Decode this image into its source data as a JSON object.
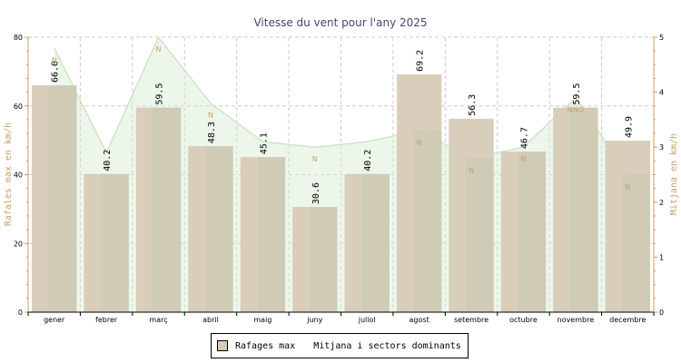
{
  "chart_data": {
    "type": "bar",
    "title": "Vitesse du vent pour l'any 2025",
    "categories": [
      "gener",
      "febrer",
      "març",
      "abril",
      "maig",
      "juny",
      "juliol",
      "agost",
      "setembre",
      "octubre",
      "novembre",
      "decembre"
    ],
    "ylabel_left": "Rafales max en km/h",
    "ylabel_right": "Mitjana en km/h",
    "ylim_left": [
      0,
      80
    ],
    "ylim_right": [
      0,
      5
    ],
    "yticks_left": [
      "0",
      "20",
      "40",
      "60",
      "80"
    ],
    "yticks_right": [
      "0",
      "1",
      "2",
      "3",
      "4",
      "5"
    ],
    "grid": true,
    "series": [
      {
        "name": "Rafages max",
        "kind": "bar",
        "axis": "left",
        "color": "#d7cbb7",
        "values": [
          66.0,
          40.2,
          59.5,
          48.3,
          45.1,
          30.6,
          40.2,
          69.2,
          56.3,
          46.7,
          59.5,
          49.9
        ],
        "labels": [
          "66.0",
          "40.2",
          "59.5",
          "48.3",
          "45.1",
          "30.6",
          "40.2",
          "69.2",
          "56.3",
          "46.7",
          "59.5",
          "49.9"
        ]
      },
      {
        "name": "Mitjana i sectors dominants",
        "kind": "area",
        "axis": "right",
        "color": "#d6ecd2",
        "values": [
          4.8,
          2.9,
          5.0,
          3.8,
          3.1,
          3.0,
          3.1,
          3.3,
          2.8,
          3.0,
          3.9,
          2.5
        ],
        "sectors": [
          "N",
          "",
          "N",
          "N",
          "",
          "N",
          "",
          "N",
          "N",
          "N",
          "NNO",
          "N"
        ]
      }
    ]
  },
  "legend": {
    "items": [
      "Rafages max",
      "Mitjana i sectors dominants"
    ]
  }
}
